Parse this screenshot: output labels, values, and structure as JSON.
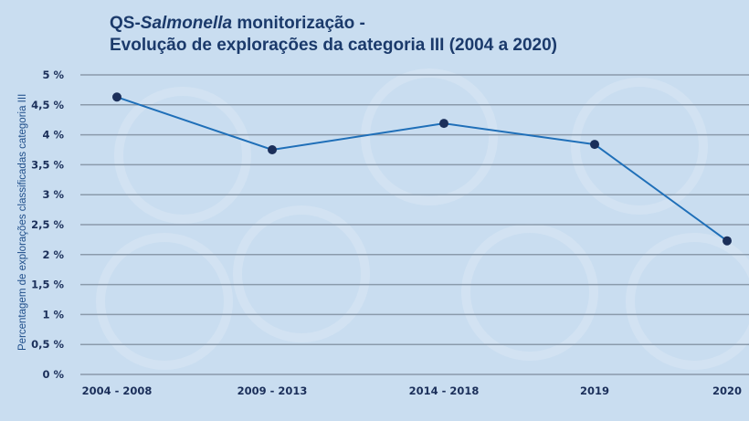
{
  "chart_data": {
    "type": "line",
    "title_line1_prefix": "QS-",
    "title_line1_italic": "Salmonella",
    "title_line1_suffix": " monitorização -",
    "title_line2": "Evolução de explorações da categoria III (2004 a 2020)",
    "ylabel": "Percentagem de explorações classificadas categoria III",
    "xlabel": "",
    "categories": [
      "2004 - 2008",
      "2009 - 2013",
      "2014 - 2018",
      "2019",
      "2020"
    ],
    "values": [
      4.63,
      3.75,
      4.19,
      3.84,
      2.23
    ],
    "ylim": [
      0,
      5
    ],
    "yticks": [
      0,
      0.5,
      1,
      1.5,
      2,
      2.5,
      3,
      3.5,
      4,
      4.5,
      5
    ],
    "ytick_labels": [
      "0 %",
      "0,5 %",
      "1 %",
      "1,5 %",
      "2 %",
      "2,5 %",
      "3 %",
      "3,5 %",
      "4 %",
      "4,5 %",
      "5 %"
    ],
    "grid": true,
    "line_color": "#1f6fb8",
    "marker_color": "#1b2f5a",
    "background_color": "#c9ddf0"
  }
}
